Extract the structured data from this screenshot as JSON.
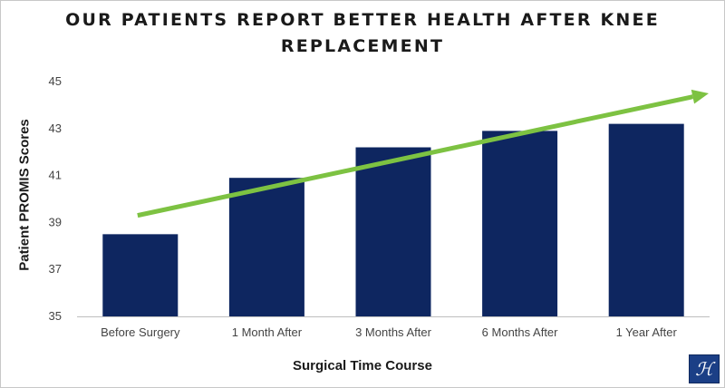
{
  "chart_data": {
    "type": "bar",
    "title_lines": [
      "OUR PATIENTS REPORT BETTER HEALTH AFTER KNEE",
      "REPLACEMENT"
    ],
    "xlabel": "Surgical Time Course",
    "ylabel": "Patient PROMIS Scores",
    "categories": [
      "Before Surgery",
      "1 Month After",
      "3 Months After",
      "6 Months After",
      "1 Year After"
    ],
    "values": [
      38.5,
      40.9,
      42.2,
      42.9,
      43.2
    ],
    "ylim": [
      35,
      45
    ],
    "yticks": [
      35,
      37,
      39,
      41,
      43,
      45
    ],
    "grid": false,
    "bar_color": "#0e2660",
    "trend_arrow": {
      "color": "#7dc242",
      "start_value": 39.3,
      "end_value": 44.5
    }
  },
  "logo": {
    "glyph": "ℋ",
    "icon": "monogram-logo-icon"
  }
}
